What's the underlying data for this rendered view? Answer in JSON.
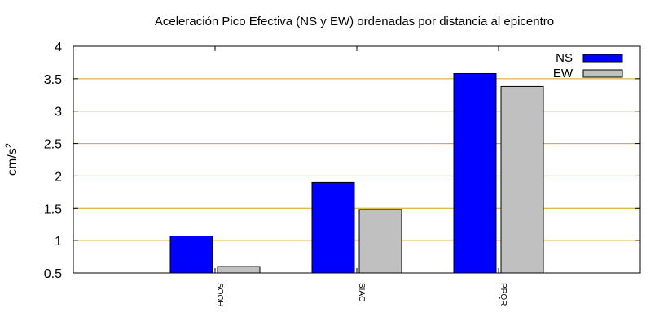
{
  "chart_data": {
    "type": "bar",
    "title": "Aceleración Pico Efectiva (NS y EW) ordenadas por distancia al epicentro",
    "xlabel": "",
    "ylabel": "cm/s",
    "ylabel_exponent": "2",
    "ylim": [
      0.5,
      4
    ],
    "yticks": [
      "0.5",
      "1",
      "1.5",
      "2",
      "2.5",
      "3",
      "3.5",
      "4"
    ],
    "categories": [
      "SOOH",
      "SIAC",
      "PPQR"
    ],
    "series": [
      {
        "name": "NS",
        "values": [
          1.07,
          1.9,
          3.58
        ],
        "color": "#0000ff"
      },
      {
        "name": "EW",
        "values": [
          0.6,
          1.48,
          3.38
        ],
        "color": "#c0c0c0"
      }
    ],
    "grid": true,
    "grid_color": "#d4a017",
    "legend_position": "top-right"
  }
}
